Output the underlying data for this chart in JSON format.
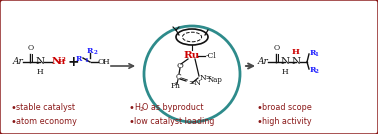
{
  "background_color": "#ffffff",
  "border_color": "#8b1a1a",
  "border_linewidth": 2.5,
  "circle_color": "#2e8b8b",
  "circle_linewidth": 2.0,
  "arrow_color": "#4a4a4a",
  "bullet_color": "#8b1a1a",
  "bullet_points_left": [
    "stable catalyst",
    "atom economy"
  ],
  "bullet_points_mid_raw": "H2O as byproduct",
  "bullet_points_mid2": "low catalyst loading",
  "bullet_points_right": [
    "broad scope",
    "high activity"
  ],
  "text_color_black": "#111111",
  "text_color_red": "#cc0000",
  "text_color_blue": "#1a1aff",
  "fontsize_bullet": 5.8,
  "fontsize_chem": 7.5,
  "fontsize_label": 6.5,
  "fontsize_small": 5.5,
  "fontsize_subscript": 4.0
}
